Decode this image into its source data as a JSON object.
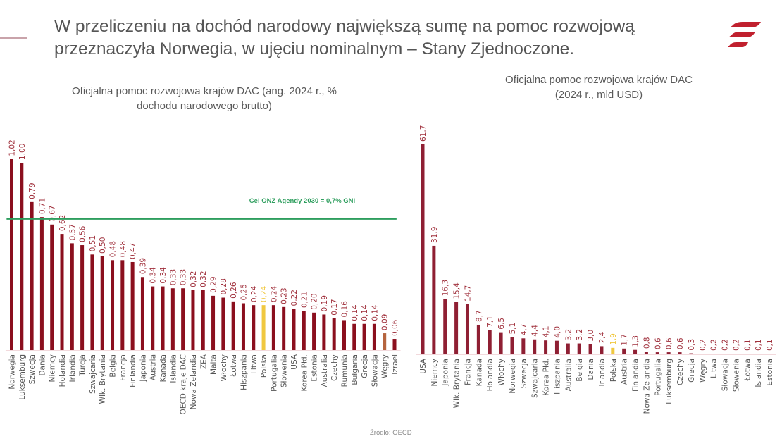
{
  "headline": {
    "line1": "W przeliczeniu na dochód narodowy największą sumę na pomoc rozwojową",
    "line2": "przeznaczyła Norwegia, w ujęciu nominalnym – Stany Zjednoczone."
  },
  "source": "Źródło: OECD",
  "colors": {
    "bar": "#8b0f1e",
    "bar_right": "#8f1f33",
    "highlight_polska": "#f0c840",
    "highlight_wegry": "#b5643e",
    "target_line": "#2e9e5e",
    "label": "#a0303c",
    "logo": "#c0202e"
  },
  "chart_data": [
    {
      "type": "bar",
      "title_line1": "Oficjalna pomoc rozwojowa krajów DAC (ang. 2024 r., %",
      "title_line2": "dochodu narodowego brutto)",
      "xlabel": "",
      "ylabel": "",
      "ylim": [
        0,
        1.1
      ],
      "grid": false,
      "reference_line": {
        "value": 0.7,
        "label": "Cel ONZ Agendy 2030 = 0,7% GNI"
      },
      "categories": [
        "Norwegia",
        "Luksemburg",
        "Szwecja",
        "Dania",
        "Niemcy",
        "Holandia",
        "Irlandia",
        "Turcja",
        "Szwajcaria",
        "Wlk. Brytania",
        "Belgia",
        "Francja",
        "Finlandia",
        "Japonia",
        "Austria",
        "Kanada",
        "Islandia",
        "OECD kraje DAC",
        "Nowa Zelandia",
        "ZEA",
        "Malta",
        "Włochy",
        "Łotwa",
        "Hiszpania",
        "Litwa",
        "Polska",
        "Portugalia",
        "Słowenia",
        "USA",
        "Korea Płd.",
        "Estonia",
        "Australia",
        "Czechy",
        "Rumunia",
        "Bułgaria",
        "Grecja",
        "Słowacja",
        "Węgry",
        "Izrael"
      ],
      "values": [
        1.02,
        1.0,
        0.79,
        0.71,
        0.67,
        0.62,
        0.57,
        0.56,
        0.51,
        0.5,
        0.48,
        0.48,
        0.47,
        0.39,
        0.34,
        0.34,
        0.33,
        0.33,
        0.32,
        0.32,
        0.29,
        0.28,
        0.26,
        0.25,
        0.24,
        0.24,
        0.24,
        0.23,
        0.22,
        0.21,
        0.2,
        0.19,
        0.17,
        0.16,
        0.14,
        0.14,
        0.14,
        0.09,
        0.06
      ],
      "value_labels": [
        "1,02",
        "1,00",
        "0,79",
        "0,71",
        "0,67",
        "0,62",
        "0,57",
        "0,56",
        "0,51",
        "0,50",
        "0,48",
        "0,48",
        "0,47",
        "0,39",
        "0,34",
        "0,34",
        "0,33",
        "0,33",
        "0,32",
        "0,32",
        "0,29",
        "0,28",
        "0,26",
        "0,25",
        "0,24",
        "0,24",
        "0,24",
        "0,23",
        "0,22",
        "0,21",
        "0,20",
        "0,19",
        "0,17",
        "0,16",
        "0,14",
        "0,14",
        "0,14",
        "0,09",
        "0,06"
      ],
      "highlights": {
        "Polska": "highlight_polska",
        "Węgry": "highlight_wegry"
      }
    },
    {
      "type": "bar",
      "title_line1": "Oficjalna pomoc rozwojowa krajów DAC",
      "title_line2": "(2024 r., mld USD)",
      "xlabel": "",
      "ylabel": "",
      "ylim": [
        0,
        65
      ],
      "grid": false,
      "categories": [
        "USA",
        "Niemcy",
        "Japonia",
        "Wlk. Brytania",
        "Francja",
        "Kanada",
        "Holandia",
        "Włochy",
        "Norwegia",
        "Szwecja",
        "Szwajcaria",
        "Korea Płd.",
        "Hiszpania",
        "Australia",
        "Belgia",
        "Dania",
        "Irlandia",
        "Polska",
        "Austria",
        "Finlandia",
        "Nowa Zelandia",
        "Portugalia",
        "Luksemburg",
        "Czechy",
        "Grecja",
        "Węgry",
        "Litwa",
        "Słowacja",
        "Słowenia",
        "Łotwa",
        "Islandia",
        "Estonia"
      ],
      "values": [
        61.7,
        31.9,
        16.3,
        15.4,
        14.7,
        8.7,
        7.1,
        6.5,
        5.1,
        4.7,
        4.4,
        4.1,
        4.0,
        3.2,
        3.2,
        3.0,
        2.4,
        1.9,
        1.7,
        1.3,
        0.8,
        0.6,
        0.6,
        0.6,
        0.3,
        0.2,
        0.2,
        0.2,
        0.2,
        0.1,
        0.1,
        0.1
      ],
      "value_labels": [
        "61,7",
        "31,9",
        "16,3",
        "15,4",
        "14,7",
        "8,7",
        "7,1",
        "6,5",
        "5,1",
        "4,7",
        "4,4",
        "4,1",
        "4,0",
        "3,2",
        "3,2",
        "3,0",
        "2,4",
        "1,9",
        "1,7",
        "1,3",
        "0,8",
        "0,6",
        "0,6",
        "0,6",
        "0,3",
        "0,2",
        "0,2",
        "0,2",
        "0,2",
        "0,1",
        "0,1",
        "0,1"
      ],
      "highlights": {
        "Polska": "highlight_polska"
      }
    }
  ]
}
